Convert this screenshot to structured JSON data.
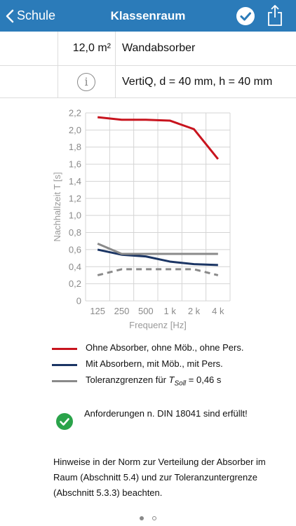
{
  "nav": {
    "back_label": "Schule",
    "title": "Klassenraum"
  },
  "rows": [
    {
      "left": "12,0 m²",
      "right": "Wandabsorber"
    },
    {
      "left_icon": "info-icon",
      "right": "VertiQ, d = 40 mm, h = 40 mm"
    }
  ],
  "chart_data": {
    "type": "line",
    "title": "",
    "xlabel": "Frequenz [Hz]",
    "ylabel": "Nachhallzeit T [s]",
    "categories": [
      "125",
      "250",
      "500",
      "1 k",
      "2 k",
      "4 k"
    ],
    "ylim": [
      0,
      2.2
    ],
    "yticks": [
      "0",
      "0,2",
      "0,4",
      "0,6",
      "0,8",
      "1,0",
      "1,2",
      "1,4",
      "1,6",
      "1,8",
      "2,0",
      "2,2"
    ],
    "grid": true,
    "series": [
      {
        "name": "Ohne Absorber, ohne Möb., ohne Pers.",
        "color": "#c8141e",
        "style": "solid",
        "values": [
          2.15,
          2.12,
          2.12,
          2.11,
          2.01,
          1.66
        ]
      },
      {
        "name": "Mit Absorbern, mit Möb., mit Pers.",
        "color": "#1b3564",
        "style": "solid",
        "values": [
          0.6,
          0.54,
          0.52,
          0.46,
          0.43,
          0.42
        ]
      },
      {
        "name": "Toleranzgrenzen für TSoll = 0,46 s",
        "color": "#8a8a8a",
        "style": "solid",
        "values": [
          0.67,
          0.55,
          0.55,
          0.55,
          0.55,
          0.55
        ]
      },
      {
        "name": "",
        "color": "#8a8a8a",
        "style": "dashed",
        "values": [
          0.3,
          0.37,
          0.37,
          0.37,
          0.37,
          0.3
        ]
      }
    ]
  },
  "legend": [
    {
      "label": "Ohne Absorber, ohne Möb., ohne Pers.",
      "color": "#c8141e"
    },
    {
      "label": "Mit Absorbern, mit Möb., mit Pers.",
      "color": "#1b3564"
    },
    {
      "label_prefix": "Toleranzgrenzen für ",
      "label_var": "T",
      "label_sub": "Soll",
      "label_suffix": " = 0,46 s",
      "color": "#8a8a8a"
    }
  ],
  "status": {
    "text": "Anforderungen n. DIN 18041 sind erfüllt!",
    "color": "#2aa34a"
  },
  "note": "Hinweise in der Norm zur Verteilung der Absorber im Raum (Abschnitt 5.4) und zur Toleranzuntergrenze (Abschnitt 5.3.3) beachten.",
  "pager": {
    "count": 2,
    "active": 1
  },
  "colors": {
    "nav": "#2b7bb9"
  }
}
